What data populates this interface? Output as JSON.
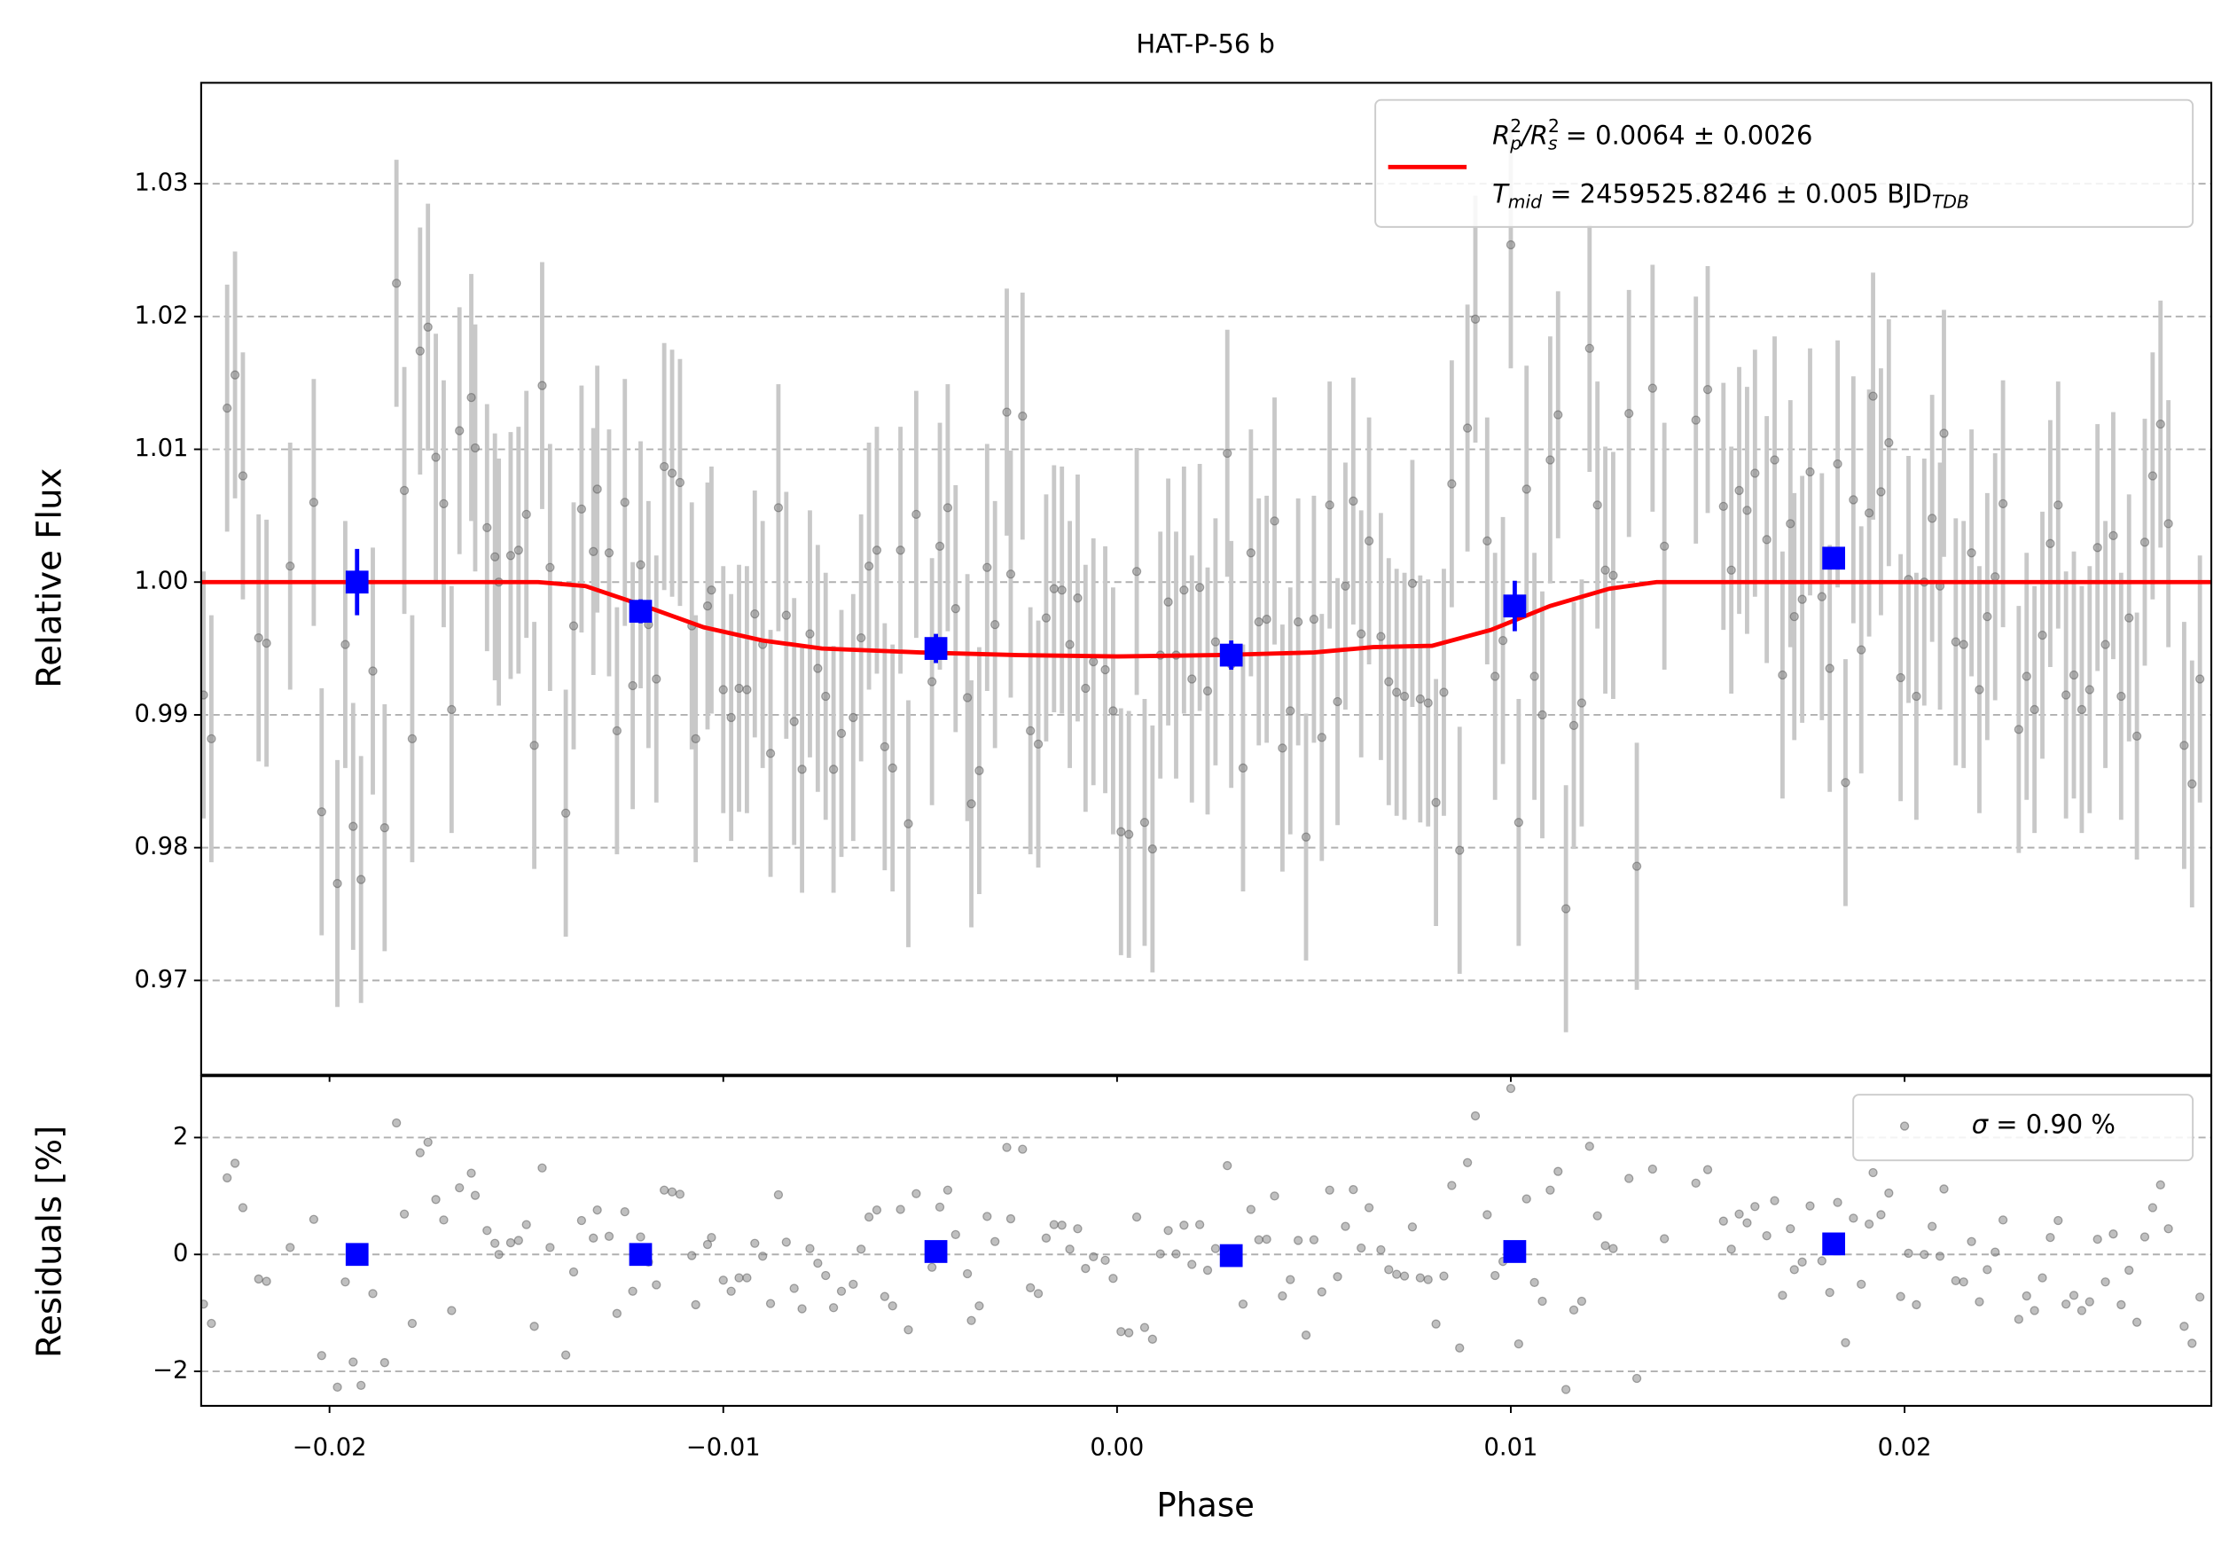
{
  "chart_data": {
    "type": "transit",
    "title": "HAT-P-56 b",
    "xlabel": "Phase",
    "xlim": [
      -0.02326,
      0.02779
    ],
    "xticks": [
      {
        "value": -0.02,
        "label": "−0.02"
      },
      {
        "value": -0.01,
        "label": "−0.01"
      },
      {
        "value": 0,
        "label": "0.00"
      },
      0.01,
      0.02
    ],
    "grid": true,
    "panels": [
      {
        "ylabel": "Relative Flux",
        "ylim": [
          0.9629,
          1.0376
        ],
        "yticks": [
          0.97,
          0.98,
          0.99,
          {
            "value": 1.0,
            "label": "1.00"
          },
          1.01,
          1.02,
          1.03
        ]
      },
      {
        "ylabel": "Residuals [%]",
        "ylim": [
          -2.59,
          3.05
        ],
        "yticks": [
          {
            "value": -2,
            "label": "−2"
          },
          0,
          2
        ]
      }
    ],
    "data": {
      "color": "#808080",
      "error_color": "#c8c8c8",
      "error": 0.0093,
      "x": [
        -0.0232,
        -0.023,
        -0.0226,
        -0.0224,
        -0.0222,
        -0.0218,
        -0.0216,
        -0.021,
        -0.0204,
        -0.0202,
        -0.0198,
        -0.0196,
        -0.0194,
        -0.0192,
        -0.0189,
        -0.0186,
        -0.0183,
        -0.0181,
        -0.0179,
        -0.0177,
        -0.0175,
        -0.0173,
        -0.0171,
        -0.0169,
        -0.0167,
        -0.0164,
        -0.0163,
        -0.016,
        -0.0158,
        -0.0157,
        -0.0154,
        -0.0152,
        -0.015,
        -0.0148,
        -0.0146,
        -0.0144,
        -0.014,
        -0.0138,
        -0.0136,
        -0.0133,
        -0.0132,
        -0.0129,
        -0.0127,
        -0.0125,
        -0.0123,
        -0.0121,
        -0.0119,
        -0.0117,
        -0.0115,
        -0.0113,
        -0.0111,
        -0.0108,
        -0.0107,
        -0.0104,
        -0.0103,
        -0.01,
        -0.0098,
        -0.0096,
        -0.0094,
        -0.0092,
        -0.009,
        -0.0088,
        -0.0086,
        -0.0084,
        -0.0082,
        -0.008,
        -0.0078,
        -0.0076,
        -0.0074,
        -0.0072,
        -0.007,
        -0.0067,
        -0.0065,
        -0.0063,
        -0.0061,
        -0.0059,
        -0.0057,
        -0.0055,
        -0.0053,
        -0.0051,
        -0.0047,
        -0.0045,
        -0.0043,
        -0.0041,
        -0.0038,
        -0.0037,
        -0.0035,
        -0.0033,
        -0.0031,
        -0.0028,
        -0.0027,
        -0.0024,
        -0.0022,
        -0.002,
        -0.0018,
        -0.0016,
        -0.0014,
        -0.0012,
        -0.001,
        -0.0008,
        -0.0006,
        -0.0003,
        -0.0001,
        0.0001,
        0.0003,
        0.0005,
        0.0007,
        0.0009,
        0.0011,
        0.0013,
        0.0015,
        0.0017,
        0.0019,
        0.0021,
        0.0023,
        0.0025,
        0.0028,
        0.0029,
        0.0032,
        0.0034,
        0.0036,
        0.0038,
        0.004,
        0.0042,
        0.0044,
        0.0046,
        0.0048,
        0.005,
        0.0052,
        0.0054,
        0.0056,
        0.0058,
        0.006,
        0.0062,
        0.0064,
        0.0067,
        0.0069,
        0.0071,
        0.0073,
        0.0075,
        0.0077,
        0.0079,
        0.0081,
        0.0083,
        0.0085,
        0.0087,
        0.0089,
        0.0091,
        0.0094,
        0.0096,
        0.0098,
        0.01,
        0.0102,
        0.0104,
        0.0106,
        0.0108,
        0.011,
        0.0112,
        0.0114,
        0.0116,
        0.0118,
        0.012,
        0.0122,
        0.0124,
        0.0126,
        0.013,
        0.0132,
        0.0136,
        0.0139,
        0.0147,
        0.015,
        0.0154,
        0.0156,
        0.0158,
        0.016,
        0.0162,
        0.0165,
        0.0167,
        0.0169,
        0.0171,
        0.0172,
        0.0174,
        0.0176,
        0.0179,
        0.0181,
        0.0183,
        0.0185,
        0.0187,
        0.0189,
        0.0191,
        0.0192,
        0.0194,
        0.0196,
        0.0199,
        0.0201,
        0.0203,
        0.0205,
        0.0207,
        0.0209,
        0.021,
        0.0213,
        0.0215,
        0.0217,
        0.0219,
        0.0221,
        0.0223,
        0.0225,
        0.0229,
        0.0231,
        0.0233,
        0.0235,
        0.0237,
        0.0239,
        0.0241,
        0.0243,
        0.0245,
        0.0247,
        0.0249,
        0.0251,
        0.0253,
        0.0255,
        0.0257,
        0.0259,
        0.0261,
        0.0263,
        0.0265,
        0.0267,
        0.0271,
        0.0273,
        0.0275
      ],
      "values": [
        0.9915,
        0.9882,
        1.0131,
        1.0156,
        1.008,
        0.9958,
        0.9954,
        1.0012,
        1.006,
        0.9827,
        0.9773,
        0.9953,
        0.9816,
        0.9776,
        0.9933,
        0.9815,
        1.0225,
        1.0069,
        0.9882,
        1.0174,
        1.0192,
        1.0094,
        1.0059,
        0.9904,
        1.0114,
        1.0139,
        1.0101,
        1.0041,
        1.0019,
        1.0,
        1.002,
        1.0024,
        1.0051,
        0.9877,
        1.0148,
        1.0011,
        0.9826,
        0.9967,
        1.0055,
        1.0023,
        1.007,
        1.0022,
        0.9888,
        1.006,
        0.9922,
        1.0013,
        0.9968,
        0.9927,
        1.0087,
        1.0082,
        1.0075,
        0.9967,
        0.9882,
        0.9982,
        0.9994,
        0.9919,
        0.9898,
        0.992,
        0.9919,
        0.9976,
        0.9953,
        0.9871,
        1.0056,
        0.9975,
        0.9895,
        0.9859,
        0.9961,
        0.9935,
        0.9914,
        0.9859,
        0.9886,
        0.9898,
        0.9958,
        1.0012,
        1.0024,
        0.9876,
        0.986,
        1.0024,
        0.9818,
        1.0051,
        0.9925,
        1.0027,
        1.0056,
        0.998,
        0.9913,
        0.9833,
        0.9858,
        1.0011,
        0.9968,
        1.0128,
        1.0006,
        1.0125,
        0.9888,
        0.9878,
        0.9973,
        0.9995,
        0.9994,
        0.9953,
        0.9988,
        0.992,
        0.994,
        0.9934,
        0.9903,
        0.9812,
        0.981,
        1.0008,
        0.9819,
        0.9799,
        0.9945,
        0.9985,
        0.9945,
        0.9994,
        0.9927,
        0.9996,
        0.9918,
        0.9955,
        1.0097,
        0.9938,
        0.986,
        1.0022,
        0.997,
        0.9972,
        1.0046,
        0.9875,
        0.9903,
        0.997,
        0.9808,
        0.9972,
        0.9883,
        1.0058,
        0.991,
        0.9997,
        1.0061,
        0.9961,
        1.0031,
        0.9959,
        0.9925,
        0.9917,
        0.9914,
        0.9999,
        0.9912,
        0.9909,
        0.9834,
        0.9917,
        1.0074,
        0.9798,
        1.0116,
        1.0198,
        1.0031,
        0.9929,
        0.9956,
        1.0254,
        0.9819,
        1.007,
        0.9929,
        0.99,
        1.0092,
        1.0126,
        0.9754,
        0.9892,
        0.9909,
        1.0176,
        1.0058,
        1.0009,
        1.0005,
        1.0127,
        0.9786,
        1.0146,
        1.0027,
        1.0122,
        1.0145,
        1.0057,
        1.0009,
        1.0069,
        1.0054,
        1.0082,
        1.0032,
        1.0092,
        0.993,
        1.0044,
        0.9974,
        0.9987,
        1.0083,
        0.9989,
        0.9935,
        1.0089,
        0.9849,
        1.0062,
        0.9949,
        1.0052,
        1.014,
        1.0068,
        1.0105,
        0.9928,
        1.0002,
        0.9914,
        1.0,
        1.0048,
        0.9997,
        1.0112,
        0.9955,
        0.9953,
        1.0022,
        0.9919,
        0.9974,
        1.0004,
        1.0059,
        0.9889,
        0.9929,
        0.9904,
        0.996,
        1.0029,
        1.0058,
        0.9915,
        0.993,
        0.9904,
        0.9919,
        1.0026,
        0.9953,
        1.0035,
        0.9914,
        0.9973,
        0.9884,
        1.003,
        1.008,
        1.0119,
        1.0044,
        0.9877,
        0.9848,
        0.9927
      ],
      "residuals": [
        -0.85,
        -1.18,
        1.31,
        1.56,
        0.8,
        -0.42,
        -0.46,
        0.12,
        0.6,
        -1.73,
        -2.27,
        -0.47,
        -1.84,
        -2.24,
        -0.67,
        -1.85,
        2.25,
        0.69,
        -1.18,
        1.74,
        1.92,
        0.94,
        0.59,
        -0.96,
        1.14,
        1.39,
        1.01,
        0.41,
        0.19,
        0.0,
        0.2,
        0.24,
        0.51,
        -1.23,
        1.48,
        0.12,
        -1.72,
        -0.3,
        0.58,
        0.28,
        0.76,
        0.31,
        -1.01,
        0.73,
        -0.63,
        0.3,
        -0.13,
        -0.52,
        1.1,
        1.07,
        1.03,
        -0.02,
        -0.86,
        0.17,
        0.29,
        -0.44,
        -0.63,
        -0.4,
        -0.4,
        0.19,
        -0.03,
        -0.84,
        1.02,
        0.21,
        -0.58,
        -0.93,
        0.1,
        -0.15,
        -0.36,
        -0.91,
        -0.63,
        -0.51,
        0.09,
        0.64,
        0.76,
        -0.72,
        -0.88,
        0.77,
        -1.29,
        1.04,
        -0.22,
        0.81,
        1.1,
        0.34,
        -0.33,
        -1.13,
        -0.88,
        0.65,
        0.22,
        1.83,
        0.61,
        1.8,
        -0.57,
        -0.67,
        0.28,
        0.51,
        0.5,
        0.09,
        0.44,
        -0.24,
        -0.04,
        -0.1,
        -0.41,
        -1.32,
        -1.34,
        0.64,
        -1.25,
        -1.45,
        0.01,
        0.41,
        0.01,
        0.5,
        -0.17,
        0.51,
        -0.27,
        0.1,
        1.52,
        -0.07,
        -0.85,
        0.77,
        0.25,
        0.26,
        1.0,
        -0.71,
        -0.43,
        0.24,
        -1.38,
        0.25,
        -0.64,
        1.1,
        -0.38,
        0.48,
        1.11,
        0.11,
        0.8,
        0.08,
        -0.26,
        -0.34,
        -0.37,
        0.47,
        -0.4,
        -0.43,
        -1.19,
        -0.37,
        1.18,
        -1.6,
        1.57,
        2.37,
        0.68,
        -0.36,
        -0.12,
        2.84,
        -1.53,
        0.95,
        -0.48,
        -0.8,
        1.1,
        1.42,
        -2.31,
        -0.95,
        -0.8,
        1.85,
        0.66,
        0.15,
        0.1,
        1.3,
        -2.12,
        1.46,
        0.27,
        1.22,
        1.45,
        0.57,
        0.09,
        0.69,
        0.54,
        0.82,
        0.32,
        0.92,
        -0.7,
        0.44,
        -0.26,
        -0.13,
        0.83,
        -0.11,
        -0.65,
        0.89,
        -1.51,
        0.62,
        -0.51,
        0.52,
        1.4,
        0.68,
        1.05,
        -0.72,
        0.02,
        -0.86,
        0.0,
        0.48,
        -0.03,
        1.12,
        -0.45,
        -0.47,
        0.22,
        -0.81,
        -0.26,
        0.04,
        0.59,
        -1.11,
        -0.71,
        -0.96,
        -0.4,
        0.29,
        0.58,
        -0.85,
        -0.7,
        -0.96,
        -0.81,
        0.26,
        -0.47,
        0.35,
        -0.86,
        -0.27,
        -1.16,
        0.3,
        0.8,
        1.19,
        0.44,
        -1.23,
        -1.52,
        -0.73
      ]
    },
    "binned": {
      "color": "#0000ff",
      "x": [
        -0.0193,
        -0.0121,
        -0.0046,
        0.0029,
        0.0101,
        0.0182
      ],
      "values": [
        1.0,
        0.9978,
        0.995,
        0.9945,
        0.9982,
        1.0018
      ],
      "errors": [
        0.0025,
        0.0009,
        0.0011,
        0.0011,
        0.0019,
        0.0008
      ],
      "residuals": [
        0.0,
        0.0,
        0.05,
        -0.02,
        0.05,
        0.18
      ]
    },
    "model": {
      "color": "#ff0000",
      "x": [
        -0.02326,
        -0.0147,
        -0.0135,
        -0.012,
        -0.0105,
        -0.009,
        -0.0075,
        -0.005,
        -0.0025,
        0,
        0.0025,
        0.005,
        0.0065,
        0.008,
        0.0095,
        0.011,
        0.0125,
        0.0137,
        0.02779
      ],
      "values": [
        1,
        1,
        0.9997,
        0.9982,
        0.9966,
        0.9956,
        0.995,
        0.9947,
        0.9945,
        0.9944,
        0.9945,
        0.9947,
        0.9951,
        0.9952,
        0.9964,
        0.9982,
        0.9995,
        1,
        1
      ],
      "label": [
        [
          {
            "text": "R",
            "style": "it"
          },
          {
            "text": "2",
            "style": "sup"
          },
          {
            "text": "p",
            "style": "sub-it"
          },
          {
            "text": "/",
            "style": "it"
          },
          {
            "text": "R",
            "style": "it"
          },
          {
            "text": "2",
            "style": "sup"
          },
          {
            "text": "s",
            "style": "sub-it"
          },
          {
            "text": " = 0.0064 ± 0.0026",
            "style": "normal"
          }
        ],
        [
          {
            "text": "T",
            "style": "it"
          },
          {
            "text": "mid",
            "style": "sub-it"
          },
          {
            "text": " = 2459525.8246 ± 0.005 BJD",
            "style": "normal"
          },
          {
            "text": "TDB",
            "style": "sub-it"
          }
        ]
      ]
    },
    "residual_legend": [
      {
        "text": "σ",
        "style": "it"
      },
      {
        "text": " = 0.90 %",
        "style": "normal"
      }
    ]
  }
}
